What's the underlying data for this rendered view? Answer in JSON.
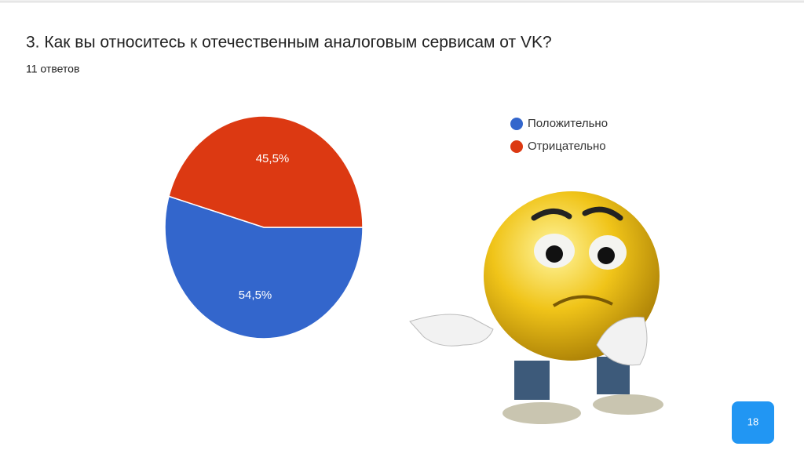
{
  "chart_data": {
    "type": "pie",
    "title": "3. Как вы относитесь к отечественным аналоговым сервисам от VK?",
    "subtitle": "11 ответов",
    "categories": [
      "Положительно",
      "Отрицательно"
    ],
    "values": [
      54.5,
      45.5
    ],
    "value_labels": [
      "54,5%",
      "45,5%"
    ],
    "colors": [
      "#3366cc",
      "#dc3912"
    ],
    "legend": "right"
  },
  "page_number": "18"
}
